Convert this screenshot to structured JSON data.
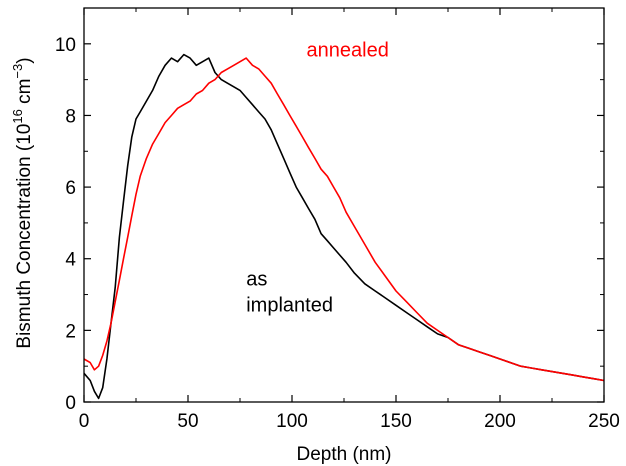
{
  "chart_data": {
    "type": "line",
    "title": "",
    "xlabel": "Depth (nm)",
    "ylabel": {
      "prefix": "Bismuth Concentration (10",
      "exp1": "16",
      "mid": " cm",
      "exp2": "−3",
      "suffix": ")"
    },
    "xlim": [
      0,
      250
    ],
    "ylim": [
      0,
      11
    ],
    "xticks": [
      0,
      50,
      100,
      150,
      200,
      250
    ],
    "yticks": [
      0,
      2,
      4,
      6,
      8,
      10
    ],
    "grid": false,
    "legend": "none",
    "annotations": [
      {
        "id": "annealed",
        "lines": [
          "annealed"
        ],
        "color": "#ff0000",
        "x": 107,
        "y": 9.65
      },
      {
        "id": "as-implanted",
        "lines": [
          "as",
          "implanted"
        ],
        "color": "#000000",
        "x": 78,
        "y": 3.25
      }
    ],
    "series": [
      {
        "key": "as_implanted",
        "color": "#000000",
        "x": [
          0,
          3,
          5,
          7,
          9,
          11,
          13,
          15,
          17,
          19,
          21,
          23,
          25,
          27,
          30,
          33,
          36,
          39,
          42,
          45,
          48,
          51,
          54,
          57,
          60,
          63,
          66,
          69,
          72,
          75,
          78,
          81,
          84,
          87,
          90,
          93,
          96,
          99,
          102,
          105,
          108,
          111,
          114,
          117,
          120,
          123,
          126,
          130,
          135,
          140,
          145,
          150,
          155,
          160,
          165,
          170,
          175,
          180,
          185,
          190,
          195,
          200,
          205,
          210,
          215,
          220,
          225,
          230,
          235,
          240,
          245,
          250
        ],
        "y": [
          0.8,
          0.6,
          0.3,
          0.1,
          0.4,
          1.2,
          2.2,
          3.2,
          4.6,
          5.6,
          6.6,
          7.4,
          7.9,
          8.1,
          8.4,
          8.7,
          9.1,
          9.4,
          9.6,
          9.5,
          9.7,
          9.6,
          9.4,
          9.5,
          9.6,
          9.2,
          9.0,
          8.9,
          8.8,
          8.7,
          8.5,
          8.3,
          8.1,
          7.9,
          7.6,
          7.2,
          6.8,
          6.4,
          6.0,
          5.7,
          5.4,
          5.1,
          4.7,
          4.5,
          4.3,
          4.1,
          3.9,
          3.6,
          3.3,
          3.1,
          2.9,
          2.7,
          2.5,
          2.3,
          2.1,
          1.9,
          1.8,
          1.6,
          1.5,
          1.4,
          1.3,
          1.2,
          1.1,
          1.0,
          0.95,
          0.9,
          0.85,
          0.8,
          0.75,
          0.7,
          0.65,
          0.6
        ]
      },
      {
        "key": "annealed",
        "color": "#ff0000",
        "x": [
          0,
          3,
          5,
          7,
          9,
          11,
          13,
          15,
          17,
          19,
          21,
          23,
          25,
          27,
          30,
          33,
          36,
          39,
          42,
          45,
          48,
          51,
          54,
          57,
          60,
          63,
          66,
          69,
          72,
          75,
          78,
          81,
          84,
          87,
          90,
          93,
          96,
          99,
          102,
          105,
          108,
          111,
          114,
          117,
          120,
          123,
          126,
          130,
          135,
          140,
          145,
          150,
          155,
          160,
          165,
          170,
          175,
          180,
          185,
          190,
          195,
          200,
          205,
          210,
          215,
          220,
          225,
          230,
          235,
          240,
          245,
          250
        ],
        "y": [
          1.2,
          1.1,
          0.9,
          1.0,
          1.3,
          1.7,
          2.2,
          2.8,
          3.4,
          4.0,
          4.6,
          5.2,
          5.8,
          6.3,
          6.8,
          7.2,
          7.5,
          7.8,
          8.0,
          8.2,
          8.3,
          8.4,
          8.6,
          8.7,
          8.9,
          9.0,
          9.2,
          9.3,
          9.4,
          9.5,
          9.6,
          9.4,
          9.3,
          9.1,
          8.9,
          8.6,
          8.3,
          8.0,
          7.7,
          7.4,
          7.1,
          6.8,
          6.5,
          6.3,
          6.0,
          5.7,
          5.3,
          4.9,
          4.4,
          3.9,
          3.5,
          3.1,
          2.8,
          2.5,
          2.2,
          2.0,
          1.8,
          1.6,
          1.5,
          1.4,
          1.3,
          1.2,
          1.1,
          1.0,
          0.95,
          0.9,
          0.85,
          0.8,
          0.75,
          0.7,
          0.65,
          0.6
        ]
      }
    ]
  }
}
